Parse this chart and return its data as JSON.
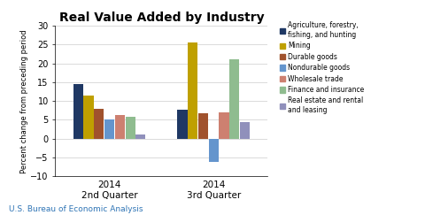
{
  "title": "Real Value Added by Industry",
  "ylabel": "Percent change from preceding period",
  "xlabel_labels": [
    "2014\n2nd Quarter",
    "2014\n3rd Quarter"
  ],
  "colors": [
    "#1F3864",
    "#BFA000",
    "#A0522D",
    "#6495CD",
    "#CD8070",
    "#8FBC8F",
    "#9090BB"
  ],
  "q2_values": [
    14.5,
    11.5,
    8.0,
    5.2,
    6.4,
    5.8,
    1.0
  ],
  "q3_values": [
    7.7,
    25.5,
    6.8,
    -6.2,
    7.0,
    21.0,
    4.3
  ],
  "ylim": [
    -10,
    30
  ],
  "yticks": [
    -10,
    -5,
    0,
    5,
    10,
    15,
    20,
    25,
    30
  ],
  "footer": "U.S. Bureau of Economic Analysis",
  "background_color": "#FFFFFF",
  "legend_labels": [
    "Agriculture, forestry,\nfishing, and hunting",
    "Mining",
    "Durable goods",
    "Nondurable goods",
    "Wholesale trade",
    "Finance and insurance",
    "Real estate and rental\nand leasing"
  ]
}
